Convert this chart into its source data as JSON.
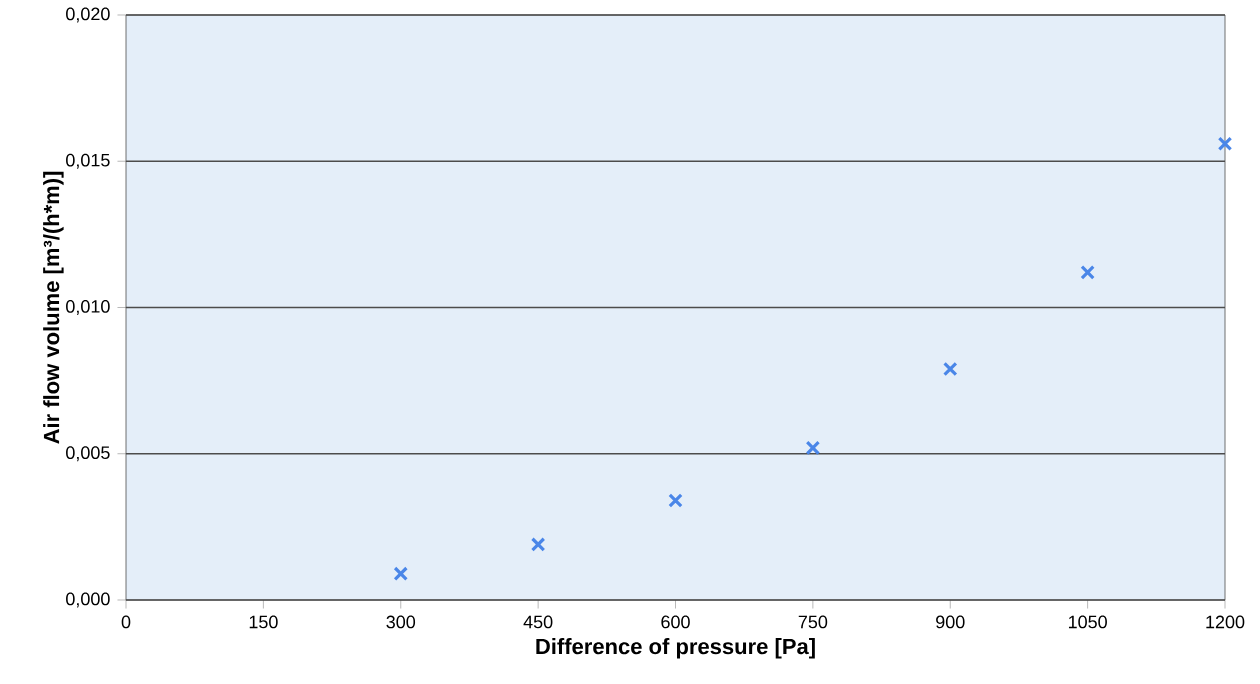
{
  "chart_data": {
    "type": "scatter",
    "xlabel": "Difference of pressure [Pa]",
    "ylabel": "Air flow volume  [m³/(h*m)]",
    "x": [
      300,
      450,
      600,
      750,
      900,
      1050,
      1200
    ],
    "values": [
      0.0009,
      0.0019,
      0.0034,
      0.0052,
      0.0079,
      0.0112,
      0.0156
    ],
    "color": "#4a86e8",
    "marker": "cross",
    "xlim": [
      0,
      1200
    ],
    "xticks": [
      0,
      150,
      300,
      450,
      600,
      750,
      900,
      1050,
      1200
    ],
    "ylim": [
      0,
      0.02
    ],
    "yticks": [
      {
        "value": 0,
        "label": "0,000"
      },
      {
        "value": 0.005,
        "label": "0,005"
      },
      {
        "value": 0.01,
        "label": "0,010"
      },
      {
        "value": 0.015,
        "label": "0,015"
      },
      {
        "value": 0.02,
        "label": "0,020"
      }
    ],
    "grid": "y"
  }
}
